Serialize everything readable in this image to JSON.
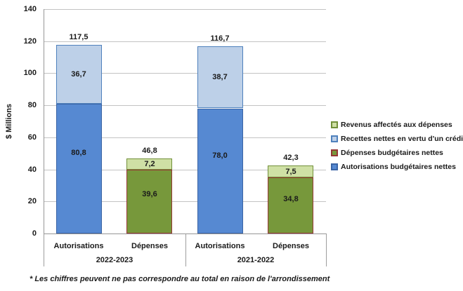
{
  "chart_data": {
    "type": "bar",
    "stacked": true,
    "ylabel": "$ Millions",
    "ylim": [
      0,
      140
    ],
    "yticks": [
      140,
      120,
      100,
      80,
      60,
      40,
      20,
      0
    ],
    "grid": true,
    "legend_position": "right",
    "legend": [
      {
        "series": "revenus",
        "label": "Revenus affectés aux dépenses",
        "fill": "#cfe0a5",
        "border": "#72903a"
      },
      {
        "series": "recettes",
        "label": "Recettes nettes en vertu d'un crédit",
        "fill": "#bdd0e8",
        "border": "#4f81bd"
      },
      {
        "series": "depenses",
        "label": "Dépenses budgétaires nettes",
        "fill": "#77983b",
        "border": "#953735"
      },
      {
        "series": "autorisations",
        "label": "Autorisations budgétaires nettes",
        "fill": "#5689d2",
        "border": "#3a64a5"
      }
    ],
    "groups": [
      {
        "label": "2022-2023",
        "bars": [
          {
            "category": "Autorisations",
            "total_label": "117,5",
            "segments": [
              {
                "series": "autorisations",
                "value": 80.8,
                "label": "80,8"
              },
              {
                "series": "recettes",
                "value": 36.7,
                "label": "36,7"
              }
            ]
          },
          {
            "category": "Dépenses",
            "total_label": "46,8",
            "segments": [
              {
                "series": "depenses",
                "value": 39.6,
                "label": "39,6"
              },
              {
                "series": "revenus",
                "value": 7.2,
                "label": "7,2"
              }
            ]
          }
        ]
      },
      {
        "label": "2021-2022",
        "bars": [
          {
            "category": "Autorisations",
            "total_label": "116,7",
            "segments": [
              {
                "series": "autorisations",
                "value": 78.0,
                "label": "78,0"
              },
              {
                "series": "recettes",
                "value": 38.7,
                "label": "38,7"
              }
            ]
          },
          {
            "category": "Dépenses",
            "total_label": "42,3",
            "segments": [
              {
                "series": "depenses",
                "value": 34.8,
                "label": "34,8"
              },
              {
                "series": "revenus",
                "value": 7.5,
                "label": "7,5"
              }
            ]
          }
        ]
      }
    ]
  },
  "footnote": "* Les chiffres peuvent ne pas correspondre au total en raison de l'arrondissement"
}
